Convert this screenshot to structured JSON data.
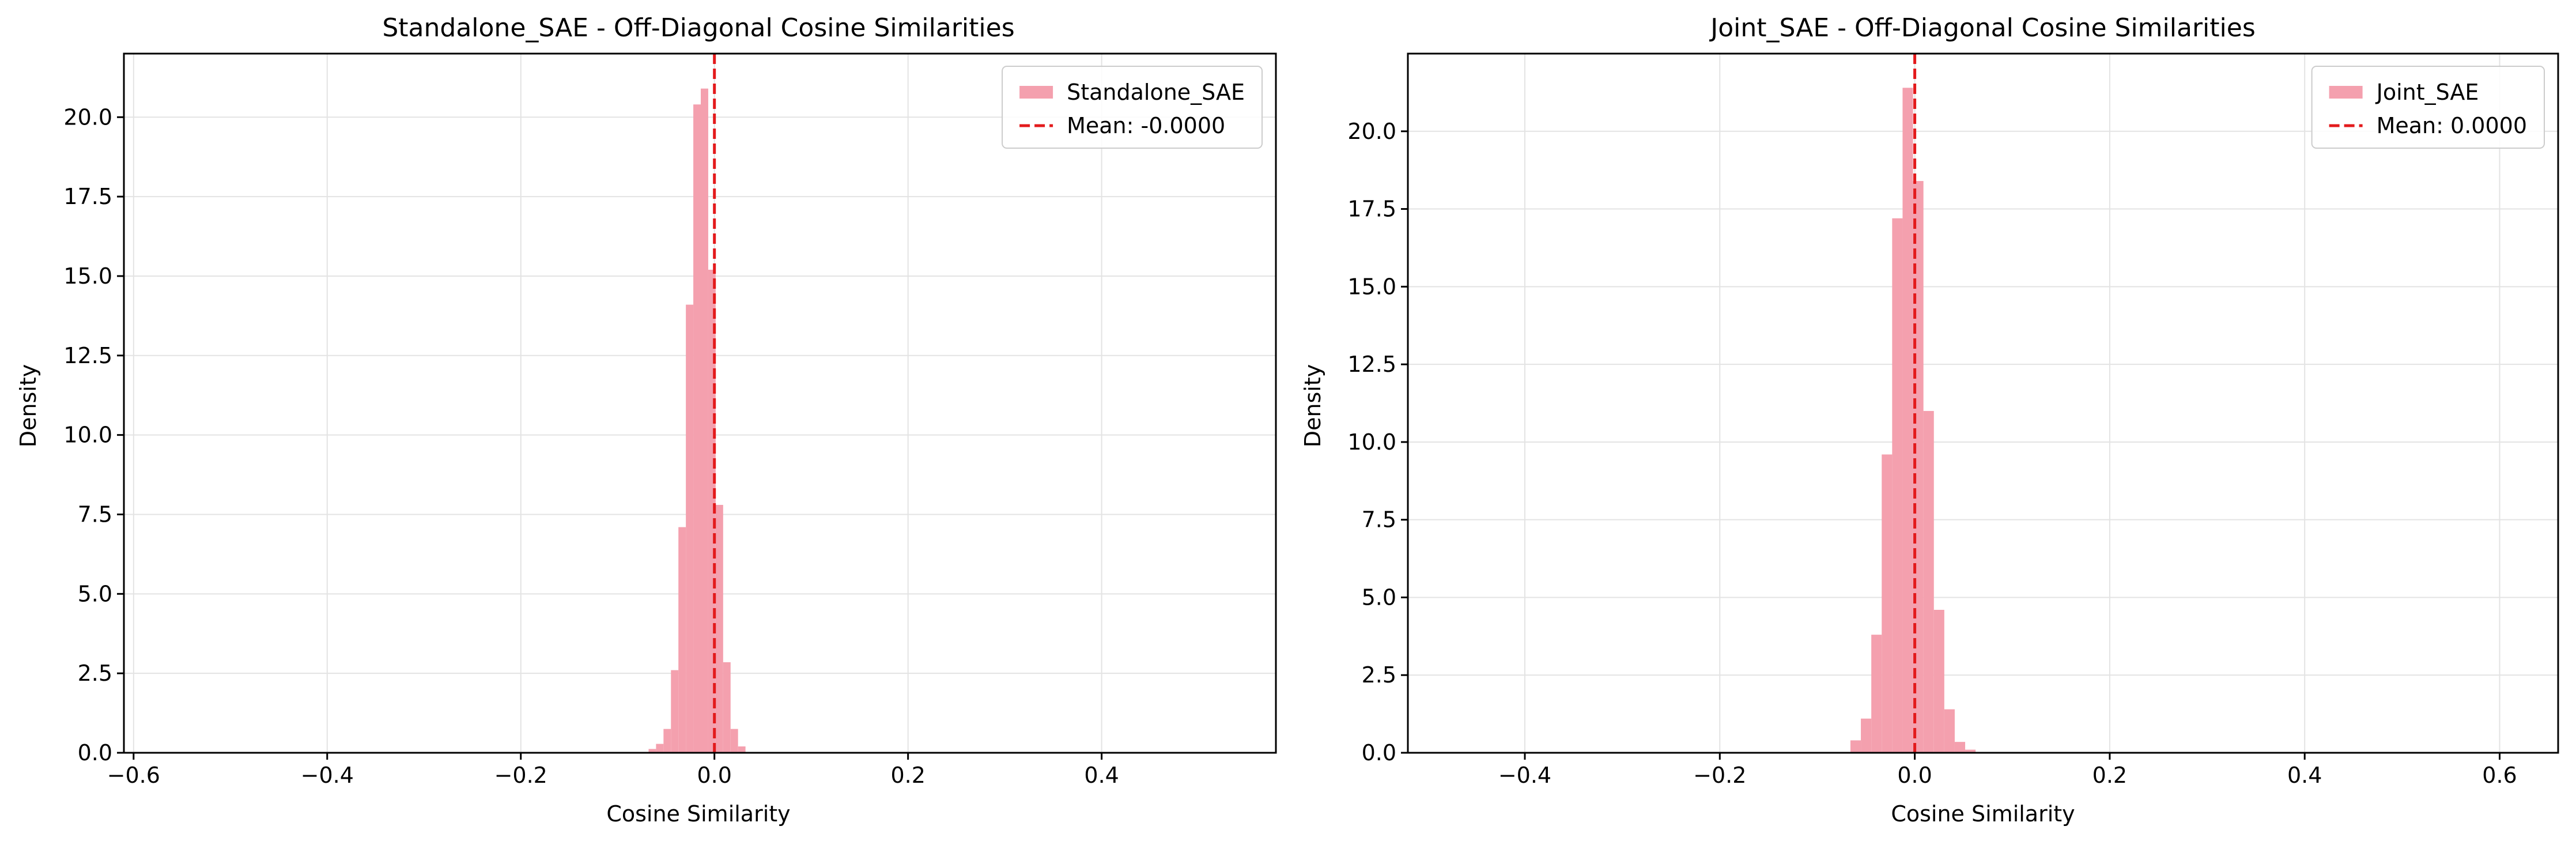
{
  "chart_data": [
    {
      "type": "bar",
      "title": "Standalone_SAE - Off-Diagonal Cosine Similarities",
      "xlabel": "Cosine Similarity",
      "ylabel": "Density",
      "xlim": [
        -0.61,
        0.58
      ],
      "ylim": [
        0,
        22
      ],
      "xticks": [
        -0.6,
        -0.4,
        -0.2,
        0.0,
        0.2,
        0.4
      ],
      "xtick_labels": [
        "−0.6",
        "−0.4",
        "−0.2",
        "0.0",
        "0.2",
        "0.4"
      ],
      "yticks": [
        0,
        2.5,
        5,
        7.5,
        10,
        12.5,
        15,
        17.5,
        20
      ],
      "ytick_labels": [
        "0.0",
        "2.5",
        "5.0",
        "7.5",
        "10.0",
        "12.5",
        "15.0",
        "17.5",
        "20.0"
      ],
      "grid": true,
      "legend_position": "top-right",
      "bar_color": "#f4a0ae",
      "mean_color": "#e31a1c",
      "series": [
        {
          "name": "Standalone_SAE"
        }
      ],
      "mean": {
        "value": 0.0,
        "label": "Mean: -0.0000"
      },
      "bins": [
        {
          "x0": -0.068,
          "x1": -0.0603,
          "y": 0.12
        },
        {
          "x0": -0.0603,
          "x1": -0.0526,
          "y": 0.28
        },
        {
          "x0": -0.0526,
          "x1": -0.0449,
          "y": 0.75
        },
        {
          "x0": -0.0449,
          "x1": -0.0372,
          "y": 2.6
        },
        {
          "x0": -0.0372,
          "x1": -0.0295,
          "y": 7.1
        },
        {
          "x0": -0.0295,
          "x1": -0.0218,
          "y": 14.1
        },
        {
          "x0": -0.0218,
          "x1": -0.0141,
          "y": 20.4
        },
        {
          "x0": -0.0141,
          "x1": -0.0064,
          "y": 20.9
        },
        {
          "x0": -0.0064,
          "x1": 0.0013,
          "y": 15.2
        },
        {
          "x0": 0.0013,
          "x1": 0.009,
          "y": 7.8
        },
        {
          "x0": 0.009,
          "x1": 0.0167,
          "y": 2.85
        },
        {
          "x0": 0.0167,
          "x1": 0.0244,
          "y": 0.75
        },
        {
          "x0": 0.0244,
          "x1": 0.0321,
          "y": 0.2
        }
      ]
    },
    {
      "type": "bar",
      "title": "Joint_SAE - Off-Diagonal Cosine Similarities",
      "xlabel": "Cosine Similarity",
      "ylabel": "Density",
      "xlim": [
        -0.52,
        0.66
      ],
      "ylim": [
        0,
        22.5
      ],
      "xticks": [
        -0.4,
        -0.2,
        0.0,
        0.2,
        0.4,
        0.6
      ],
      "xtick_labels": [
        "−0.4",
        "−0.2",
        "0.0",
        "0.2",
        "0.4",
        "0.6"
      ],
      "yticks": [
        0,
        2.5,
        5,
        7.5,
        10,
        12.5,
        15,
        17.5,
        20
      ],
      "ytick_labels": [
        "0.0",
        "2.5",
        "5.0",
        "7.5",
        "10.0",
        "12.5",
        "15.0",
        "17.5",
        "20.0"
      ],
      "grid": true,
      "legend_position": "top-right",
      "bar_color": "#f4a0ae",
      "mean_color": "#e31a1c",
      "series": [
        {
          "name": "Joint_SAE"
        }
      ],
      "mean": {
        "value": 0.0,
        "label": "Mean: 0.0000"
      },
      "bins": [
        {
          "x0": -0.066,
          "x1": -0.0553,
          "y": 0.4
        },
        {
          "x0": -0.0553,
          "x1": -0.0446,
          "y": 1.1
        },
        {
          "x0": -0.0446,
          "x1": -0.0339,
          "y": 3.8
        },
        {
          "x0": -0.0339,
          "x1": -0.0232,
          "y": 9.6
        },
        {
          "x0": -0.0232,
          "x1": -0.0125,
          "y": 17.2
        },
        {
          "x0": -0.0125,
          "x1": -0.0018,
          "y": 21.4
        },
        {
          "x0": -0.0018,
          "x1": 0.0089,
          "y": 18.4
        },
        {
          "x0": 0.0089,
          "x1": 0.0196,
          "y": 11.0
        },
        {
          "x0": 0.0196,
          "x1": 0.0303,
          "y": 4.6
        },
        {
          "x0": 0.0303,
          "x1": 0.041,
          "y": 1.4
        },
        {
          "x0": 0.041,
          "x1": 0.0517,
          "y": 0.35
        },
        {
          "x0": 0.0517,
          "x1": 0.0624,
          "y": 0.1
        }
      ]
    }
  ]
}
